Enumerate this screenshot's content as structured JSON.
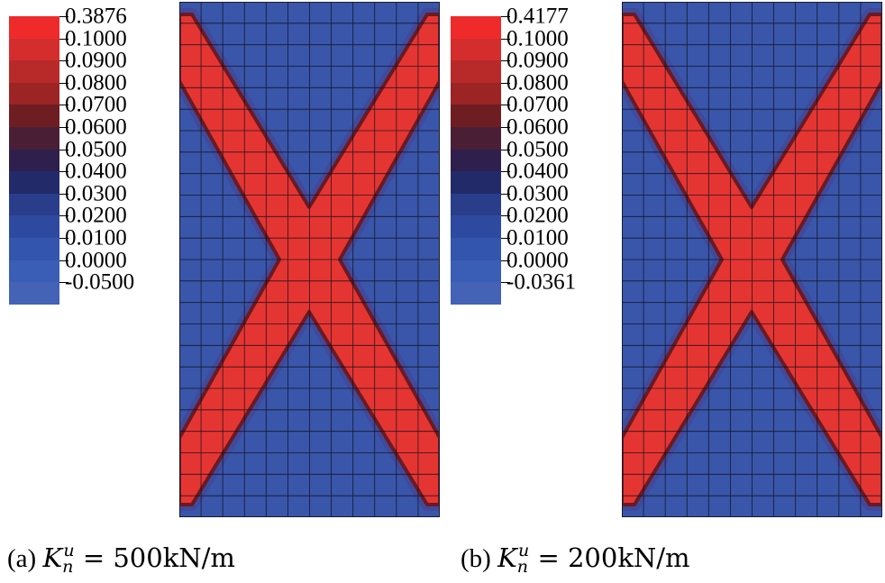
{
  "colors": {
    "background": "#3a56aa",
    "band": "#e53532",
    "band_edge": "#6a1a22",
    "mesh": "#0d0d1a"
  },
  "scale_colors": [
    "#ee2a2a",
    "#d42d2d",
    "#b82a2a",
    "#9c2424",
    "#6e1d22",
    "#4a1f36",
    "#2f1f4d",
    "#222a6a",
    "#293d8a",
    "#2e4aa0",
    "#3455ad",
    "#3a5db6",
    "#4462b6"
  ],
  "mesh": {
    "cols": 12,
    "rows": 24
  },
  "panels": [
    {
      "id": "a",
      "legend_labels": [
        "0.3876",
        "0.1000",
        "0.0900",
        "0.0800",
        "0.0700",
        "0.0600",
        "0.0500",
        "0.0400",
        "0.0300",
        "0.0200",
        "0.0100",
        "0.0000",
        "-0.0500"
      ],
      "caption": {
        "label": "(a)",
        "symbol": "K",
        "sub": "n",
        "sup": "u",
        "value": "= 500kN/m"
      }
    },
    {
      "id": "b",
      "legend_labels": [
        "0.4177",
        "0.1000",
        "0.0900",
        "0.0800",
        "0.0700",
        "0.0600",
        "0.0500",
        "0.0400",
        "0.0300",
        "0.0200",
        "0.0100",
        "0.0000",
        "-0.0361"
      ],
      "caption": {
        "label": "(b)",
        "symbol": "K",
        "sub": "n",
        "sup": "u",
        "value": "= 200kN/m"
      }
    }
  ]
}
